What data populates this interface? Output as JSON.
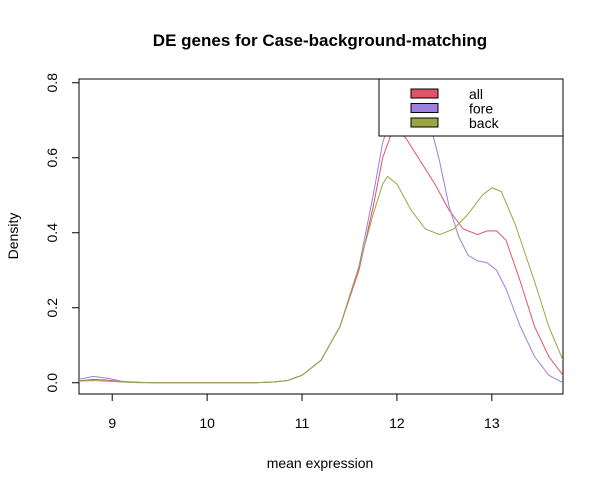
{
  "chart_data": {
    "type": "line",
    "title": "DE genes for Case-background-matching",
    "xlabel": "mean expression",
    "ylabel": "Density",
    "xlim": [
      8.65,
      13.75
    ],
    "ylim": [
      -0.03,
      0.81
    ],
    "x_ticks": [
      9,
      10,
      11,
      12,
      13
    ],
    "y_ticks": [
      0.0,
      0.2,
      0.4,
      0.6,
      0.8
    ],
    "y_tick_labels": [
      "0.0",
      "0.2",
      "0.4",
      "0.6",
      "0.8"
    ],
    "grid": false,
    "legend_position": "top-right",
    "series": [
      {
        "name": "all",
        "color": "#df536b",
        "points": [
          [
            8.65,
            0.005
          ],
          [
            8.8,
            0.009
          ],
          [
            8.95,
            0.007
          ],
          [
            9.1,
            0.003
          ],
          [
            9.3,
            0.001
          ],
          [
            9.5,
            0.0
          ],
          [
            10.0,
            0.0
          ],
          [
            10.5,
            0.0
          ],
          [
            10.7,
            0.002
          ],
          [
            10.85,
            0.006
          ],
          [
            11.0,
            0.02
          ],
          [
            11.2,
            0.06
          ],
          [
            11.4,
            0.15
          ],
          [
            11.6,
            0.3
          ],
          [
            11.75,
            0.47
          ],
          [
            11.85,
            0.6
          ],
          [
            11.95,
            0.67
          ],
          [
            12.0,
            0.68
          ],
          [
            12.1,
            0.65
          ],
          [
            12.25,
            0.59
          ],
          [
            12.4,
            0.53
          ],
          [
            12.55,
            0.46
          ],
          [
            12.7,
            0.41
          ],
          [
            12.85,
            0.395
          ],
          [
            12.95,
            0.405
          ],
          [
            13.05,
            0.405
          ],
          [
            13.15,
            0.38
          ],
          [
            13.3,
            0.27
          ],
          [
            13.45,
            0.15
          ],
          [
            13.6,
            0.07
          ],
          [
            13.75,
            0.02
          ]
        ]
      },
      {
        "name": "fore",
        "color": "#9f7fe0",
        "points": [
          [
            8.65,
            0.009
          ],
          [
            8.8,
            0.017
          ],
          [
            8.95,
            0.012
          ],
          [
            9.1,
            0.004
          ],
          [
            9.3,
            0.001
          ],
          [
            9.5,
            0.0
          ],
          [
            10.0,
            0.0
          ],
          [
            10.5,
            0.0
          ],
          [
            10.7,
            0.002
          ],
          [
            10.85,
            0.006
          ],
          [
            11.0,
            0.02
          ],
          [
            11.2,
            0.06
          ],
          [
            11.4,
            0.15
          ],
          [
            11.6,
            0.31
          ],
          [
            11.75,
            0.5
          ],
          [
            11.85,
            0.64
          ],
          [
            11.95,
            0.72
          ],
          [
            12.05,
            0.74
          ],
          [
            12.15,
            0.75
          ],
          [
            12.25,
            0.74
          ],
          [
            12.35,
            0.69
          ],
          [
            12.45,
            0.59
          ],
          [
            12.55,
            0.47
          ],
          [
            12.65,
            0.39
          ],
          [
            12.75,
            0.34
          ],
          [
            12.85,
            0.325
          ],
          [
            12.95,
            0.32
          ],
          [
            13.05,
            0.3
          ],
          [
            13.15,
            0.25
          ],
          [
            13.3,
            0.15
          ],
          [
            13.45,
            0.07
          ],
          [
            13.6,
            0.02
          ],
          [
            13.75,
            0.0
          ]
        ]
      },
      {
        "name": "back",
        "color": "#9aa644",
        "points": [
          [
            8.65,
            0.004
          ],
          [
            8.8,
            0.006
          ],
          [
            8.95,
            0.004
          ],
          [
            9.1,
            0.002
          ],
          [
            9.3,
            0.0
          ],
          [
            10.0,
            0.0
          ],
          [
            10.5,
            0.0
          ],
          [
            10.7,
            0.002
          ],
          [
            10.85,
            0.006
          ],
          [
            11.0,
            0.02
          ],
          [
            11.2,
            0.06
          ],
          [
            11.4,
            0.15
          ],
          [
            11.6,
            0.31
          ],
          [
            11.75,
            0.45
          ],
          [
            11.85,
            0.53
          ],
          [
            11.9,
            0.55
          ],
          [
            12.0,
            0.53
          ],
          [
            12.15,
            0.46
          ],
          [
            12.3,
            0.41
          ],
          [
            12.45,
            0.395
          ],
          [
            12.6,
            0.41
          ],
          [
            12.75,
            0.45
          ],
          [
            12.9,
            0.5
          ],
          [
            13.0,
            0.52
          ],
          [
            13.1,
            0.51
          ],
          [
            13.25,
            0.42
          ],
          [
            13.45,
            0.27
          ],
          [
            13.6,
            0.15
          ],
          [
            13.75,
            0.06
          ]
        ]
      }
    ]
  }
}
